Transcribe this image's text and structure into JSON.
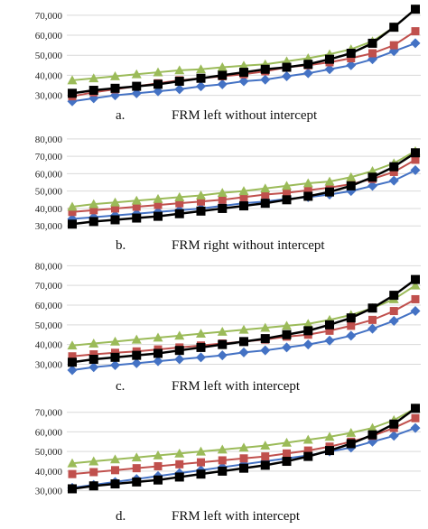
{
  "colors": {
    "series_1": "#4472C4",
    "series_2": "#C0504D",
    "series_3": "#9BBB59",
    "series_4": "#000000",
    "grid": "#D9D9D9"
  },
  "chart_data": [
    {
      "type": "line",
      "caption_letter": "a.",
      "caption_text": "FRM left without intercept",
      "x": [
        1,
        2,
        3,
        4,
        5,
        6,
        7,
        8,
        9,
        10,
        11,
        12,
        13,
        14,
        15,
        16,
        17
      ],
      "ylim": [
        28000,
        74000
      ],
      "ytick_values": [
        30000,
        40000,
        50000,
        60000,
        70000
      ],
      "ytick_labels": [
        "30,000",
        "40,000",
        "50,000",
        "60,000",
        "70,000"
      ],
      "grid": true,
      "series": [
        {
          "marker": "diamond",
          "values": [
            27000,
            28500,
            30000,
            31000,
            32000,
            33000,
            34500,
            35500,
            37000,
            37800,
            39500,
            41000,
            43000,
            45000,
            48000,
            52000,
            56000
          ]
        },
        {
          "marker": "square",
          "values": [
            29500,
            31500,
            33000,
            34500,
            36000,
            37500,
            38500,
            39500,
            40500,
            42000,
            44000,
            45000,
            46500,
            48500,
            51000,
            55000,
            62000
          ]
        },
        {
          "marker": "triangle",
          "values": [
            37500,
            38500,
            39500,
            40500,
            41500,
            42500,
            43000,
            44000,
            44800,
            45500,
            47000,
            48500,
            50500,
            53000,
            57000,
            64000,
            73000
          ]
        },
        {
          "marker": "square-filled",
          "values": [
            31000,
            32500,
            33500,
            34500,
            35500,
            37000,
            38500,
            40000,
            41500,
            43000,
            44000,
            45500,
            48000,
            51000,
            56000,
            64000,
            73000
          ]
        }
      ]
    },
    {
      "type": "line",
      "caption_letter": "b.",
      "caption_text": "FRM right without intercept",
      "x": [
        1,
        2,
        3,
        4,
        5,
        6,
        7,
        8,
        9,
        10,
        11,
        12,
        13,
        14,
        15,
        16,
        17
      ],
      "ylim": [
        27000,
        82000
      ],
      "ytick_values": [
        30000,
        40000,
        50000,
        60000,
        70000,
        80000
      ],
      "ytick_labels": [
        "30,000",
        "40,000",
        "50,000",
        "60,000",
        "70,000",
        "80,000"
      ],
      "grid": true,
      "series": [
        {
          "marker": "diamond",
          "values": [
            34000,
            35000,
            36000,
            37000,
            38000,
            39000,
            40000,
            41500,
            43000,
            44000,
            45500,
            46500,
            48000,
            50000,
            53000,
            56000,
            62000
          ]
        },
        {
          "marker": "square",
          "values": [
            38000,
            39000,
            40000,
            41000,
            42000,
            43000,
            44000,
            45000,
            46500,
            48000,
            49000,
            50500,
            52000,
            54000,
            57000,
            61000,
            68000
          ]
        },
        {
          "marker": "triangle",
          "values": [
            41000,
            42500,
            43500,
            44500,
            45500,
            46500,
            47500,
            49000,
            50000,
            51500,
            53000,
            54500,
            55500,
            58000,
            61500,
            66000,
            73000
          ]
        },
        {
          "marker": "square-filled",
          "values": [
            31000,
            32500,
            33500,
            34500,
            35500,
            37000,
            38500,
            40000,
            41500,
            43000,
            45000,
            47000,
            49500,
            53000,
            58000,
            64000,
            72000
          ]
        }
      ]
    },
    {
      "type": "line",
      "caption_letter": "c.",
      "caption_text": "FRM left with intercept",
      "x": [
        1,
        2,
        3,
        4,
        5,
        6,
        7,
        8,
        9,
        10,
        11,
        12,
        13,
        14,
        15,
        16,
        17
      ],
      "ylim": [
        27000,
        82000
      ],
      "ytick_values": [
        30000,
        40000,
        50000,
        60000,
        70000,
        80000
      ],
      "ytick_labels": [
        "30,000",
        "40,000",
        "50,000",
        "60,000",
        "70,000",
        "80,000"
      ],
      "grid": true,
      "series": [
        {
          "marker": "diamond",
          "values": [
            27000,
            28500,
            29500,
            30500,
            31500,
            32500,
            33500,
            34500,
            36000,
            37000,
            38500,
            40000,
            42000,
            44500,
            48000,
            52000,
            57000
          ]
        },
        {
          "marker": "square",
          "values": [
            34000,
            35000,
            35800,
            36500,
            37500,
            38500,
            39500,
            40500,
            41500,
            42500,
            44000,
            45000,
            47000,
            49500,
            52500,
            57000,
            63000
          ]
        },
        {
          "marker": "triangle",
          "values": [
            39500,
            40500,
            41500,
            42500,
            43500,
            44500,
            45500,
            46500,
            47500,
            48500,
            49500,
            50500,
            52500,
            55000,
            58500,
            63000,
            70000
          ]
        },
        {
          "marker": "square-filled",
          "values": [
            31000,
            32500,
            33500,
            34500,
            35500,
            37000,
            38500,
            40000,
            41500,
            43000,
            45000,
            47000,
            50000,
            53500,
            58500,
            65000,
            73000
          ]
        }
      ]
    },
    {
      "type": "line",
      "caption_letter": "d.",
      "caption_text": "FRM left with intercept",
      "x": [
        1,
        2,
        3,
        4,
        5,
        6,
        7,
        8,
        9,
        10,
        11,
        12,
        13,
        14,
        15,
        16,
        17
      ],
      "ylim": [
        28000,
        74000
      ],
      "ytick_values": [
        30000,
        40000,
        50000,
        60000,
        70000
      ],
      "ytick_labels": [
        "30,000",
        "40,000",
        "50,000",
        "60,000",
        "70,000"
      ],
      "grid": true,
      "series": [
        {
          "marker": "diamond",
          "values": [
            31500,
            33000,
            34500,
            36000,
            37500,
            39000,
            40500,
            42000,
            43500,
            45000,
            46500,
            48000,
            50000,
            52000,
            55000,
            58000,
            62000
          ]
        },
        {
          "marker": "square",
          "values": [
            38500,
            39500,
            40500,
            41500,
            42500,
            43500,
            44500,
            45500,
            46500,
            47500,
            49000,
            50500,
            52500,
            55000,
            58000,
            62000,
            67000
          ]
        },
        {
          "marker": "triangle",
          "values": [
            44000,
            45000,
            46000,
            47000,
            48000,
            49000,
            50000,
            51000,
            52000,
            53000,
            54500,
            56000,
            57500,
            59500,
            62000,
            66000,
            72000
          ]
        },
        {
          "marker": "square-filled",
          "values": [
            31000,
            32500,
            33500,
            34500,
            35500,
            37000,
            38500,
            40000,
            41500,
            43000,
            45000,
            47500,
            50500,
            54000,
            58500,
            64000,
            72000
          ]
        }
      ]
    }
  ]
}
